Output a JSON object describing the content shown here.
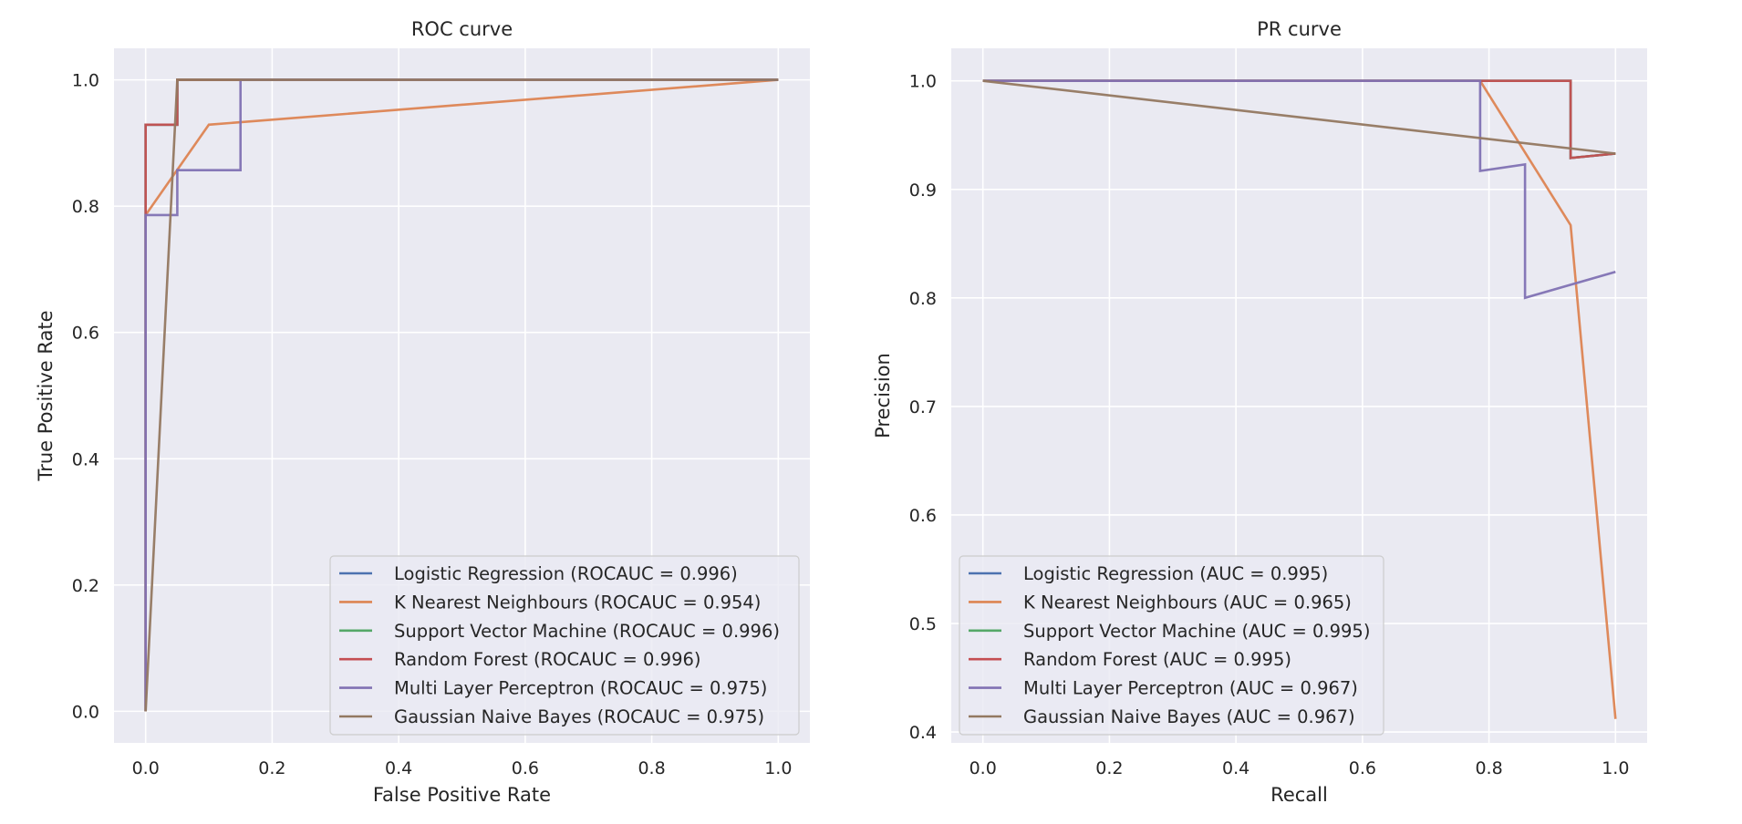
{
  "chart_data": [
    {
      "type": "line",
      "title": "ROC curve",
      "xlabel": "False Positive Rate",
      "ylabel": "True Positive Rate",
      "xlim": [
        -0.05,
        1.05
      ],
      "ylim": [
        -0.05,
        1.05
      ],
      "xticks": [
        "0.0",
        "0.2",
        "0.4",
        "0.6",
        "0.8",
        "1.0"
      ],
      "yticks": [
        "0.0",
        "0.2",
        "0.4",
        "0.6",
        "0.8",
        "1.0"
      ],
      "grid": true,
      "legend_position": "lower-right",
      "series": [
        {
          "name": "Logistic Regression (ROCAUC = 0.996)",
          "color": "#4c72b0",
          "x": [
            0,
            0,
            0.05,
            0.05,
            1.0
          ],
          "y": [
            0,
            0.929,
            0.929,
            1.0,
            1.0
          ]
        },
        {
          "name": "K Nearest Neighbours (ROCAUC = 0.954)",
          "color": "#dd8452",
          "x": [
            0,
            0,
            0.1,
            1.0
          ],
          "y": [
            0,
            0.786,
            0.929,
            1.0
          ]
        },
        {
          "name": "Support Vector Machine (ROCAUC = 0.996)",
          "color": "#55a868",
          "x": [
            0,
            0,
            0.05,
            0.05,
            1.0
          ],
          "y": [
            0,
            0.929,
            0.929,
            1.0,
            1.0
          ]
        },
        {
          "name": "Random Forest (ROCAUC = 0.996)",
          "color": "#c44e52",
          "x": [
            0,
            0,
            0.05,
            0.05,
            1.0
          ],
          "y": [
            0,
            0.929,
            0.929,
            1.0,
            1.0
          ]
        },
        {
          "name": "Multi Layer Perceptron (ROCAUC = 0.975)",
          "color": "#8172b3",
          "x": [
            0,
            0,
            0.05,
            0.05,
            0.15,
            0.15,
            1.0
          ],
          "y": [
            0,
            0.786,
            0.786,
            0.857,
            0.857,
            1.0,
            1.0
          ]
        },
        {
          "name": "Gaussian Naive Bayes (ROCAUC = 0.975)",
          "color": "#937860",
          "x": [
            0,
            0.05,
            1.0
          ],
          "y": [
            0,
            1.0,
            1.0
          ]
        }
      ]
    },
    {
      "type": "line",
      "title": "PR curve",
      "xlabel": "Recall",
      "ylabel": "Precision",
      "xlim": [
        -0.05,
        1.05
      ],
      "ylim": [
        0.39,
        1.03
      ],
      "xticks": [
        "0.0",
        "0.2",
        "0.4",
        "0.6",
        "0.8",
        "1.0"
      ],
      "yticks": [
        "0.4",
        "0.5",
        "0.6",
        "0.7",
        "0.8",
        "0.9",
        "1.0"
      ],
      "grid": true,
      "legend_position": "lower-left",
      "series": [
        {
          "name": "Logistic Regression (AUC = 0.995)",
          "color": "#4c72b0",
          "x": [
            0,
            0.929,
            0.929,
            1.0
          ],
          "y": [
            1.0,
            1.0,
            0.929,
            0.933
          ]
        },
        {
          "name": "K Nearest Neighbours (AUC = 0.965)",
          "color": "#dd8452",
          "x": [
            0,
            0.786,
            0.929,
            1.0
          ],
          "y": [
            1.0,
            1.0,
            0.867,
            0.412
          ]
        },
        {
          "name": "Support Vector Machine (AUC = 0.995)",
          "color": "#55a868",
          "x": [
            0,
            0.929,
            0.929,
            1.0
          ],
          "y": [
            1.0,
            1.0,
            0.929,
            0.933
          ]
        },
        {
          "name": "Random Forest (AUC = 0.995)",
          "color": "#c44e52",
          "x": [
            0,
            0.929,
            0.929,
            1.0
          ],
          "y": [
            1.0,
            1.0,
            0.929,
            0.933
          ]
        },
        {
          "name": "Multi Layer Perceptron (AUC = 0.967)",
          "color": "#8172b3",
          "x": [
            0,
            0.786,
            0.786,
            0.857,
            0.857,
            1.0
          ],
          "y": [
            1.0,
            1.0,
            0.917,
            0.923,
            0.8,
            0.824
          ]
        },
        {
          "name": "Gaussian Naive Bayes (AUC = 0.967)",
          "color": "#937860",
          "x": [
            0,
            1.0
          ],
          "y": [
            1.0,
            0.933
          ]
        }
      ]
    }
  ]
}
